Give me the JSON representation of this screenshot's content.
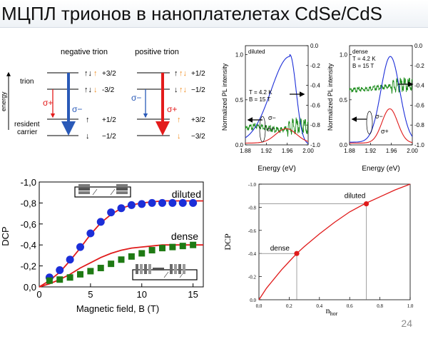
{
  "slide": {
    "title": "МЦПЛ трионов в наноплателетах CdSe/CdS",
    "page_number": "24"
  },
  "energy_diagram": {
    "negative_title": "negative trion",
    "positive_title": "positive trion",
    "axis_label": "energy",
    "trion_label": "trion",
    "resident_label_1": "resident",
    "resident_label_2": "carrier",
    "negative_levels": [
      "+3/2",
      "-3/2",
      "+1/2",
      "−1/2"
    ],
    "positive_levels": [
      "+1/2",
      "−1/2",
      "+3/2",
      "−3/2"
    ],
    "sigma_plus": "σ+",
    "sigma_minus": "σ−",
    "colors": {
      "sigma_plus": "#e31b1b",
      "sigma_minus": "#2a5ab8",
      "hole": "#f08c1e"
    }
  },
  "spectra": [
    {
      "sample": "diluted",
      "conditions": [
        "T = 4.2 K",
        "B = 15 T"
      ],
      "ylabel": "Normalized PL intensity",
      "xlabel": "Energy (eV)",
      "xticks": [
        "1.88",
        "1.92",
        "1.96",
        "2.00"
      ],
      "xlim": [
        1.88,
        2.0
      ],
      "yticks_left": [
        "0.0",
        "0.5",
        "1.0"
      ],
      "ylim_left": [
        0,
        1.1
      ],
      "yticks_right": [
        "-1.0",
        "-0.8",
        "-0.6",
        "-0.4",
        "-0.2",
        "0.0"
      ],
      "ylim_right": [
        -1.0,
        0.0
      ],
      "sigma_plus_label": "σ+",
      "sigma_minus_label": "σ−"
    },
    {
      "sample": "dense",
      "conditions": [
        "T = 4.2 K",
        "B = 15 T"
      ],
      "ylabel": "Normalized PL intensity",
      "xlabel": "Energy (eV)",
      "xticks": [
        "1.88",
        "1.92",
        "1.96",
        "2.00"
      ],
      "xlim": [
        1.88,
        2.0
      ],
      "yticks_left": [
        "0.0",
        "0.5",
        "1.0"
      ],
      "ylim_left": [
        0,
        1.1
      ],
      "yticks_right": [
        "-1.0",
        "-0.8",
        "-0.6",
        "-0.4",
        "-0.2",
        "0.0"
      ],
      "ylim_right": [
        -1.0,
        0.0
      ],
      "sigma_plus_label": "σ+",
      "sigma_minus_label": "σ−"
    }
  ],
  "dcp_field": {
    "xlabel": "Magnetic field, B (T)",
    "ylabel": "DCP",
    "xticks": [
      "0",
      "5",
      "10",
      "15"
    ],
    "yticks": [
      "0,0",
      "-0,2",
      "-0,4",
      "-0,6",
      "-0,8",
      "-1,0"
    ],
    "xlim": [
      0,
      16
    ],
    "ylim": [
      0,
      -1.0
    ],
    "series": [
      {
        "name": "diluted",
        "color": "#1c2ed8",
        "marker": "circle",
        "x": [
          1,
          2,
          3,
          4,
          5,
          6,
          7,
          8,
          9,
          10,
          11,
          12,
          13,
          14,
          15
        ],
        "y": [
          -0.09,
          -0.16,
          -0.26,
          -0.38,
          -0.51,
          -0.62,
          -0.71,
          -0.75,
          -0.78,
          -0.79,
          -0.8,
          -0.8,
          -0.8,
          -0.8,
          -0.8
        ]
      },
      {
        "name": "dense",
        "color": "#1f7a14",
        "marker": "square",
        "x": [
          1,
          2,
          3,
          4,
          5,
          6,
          7,
          8,
          9,
          10,
          11,
          12,
          13,
          14,
          15
        ],
        "y": [
          -0.06,
          -0.07,
          -0.09,
          -0.12,
          -0.15,
          -0.18,
          -0.22,
          -0.26,
          -0.29,
          -0.32,
          -0.35,
          -0.37,
          -0.38,
          -0.39,
          -0.4
        ]
      }
    ],
    "fits": [
      {
        "x": [
          0,
          1,
          2,
          3,
          4,
          5,
          6,
          7,
          8,
          9,
          10,
          11,
          12,
          13,
          14,
          15,
          16
        ],
        "y": [
          0,
          -0.06,
          -0.14,
          -0.25,
          -0.37,
          -0.5,
          -0.61,
          -0.69,
          -0.75,
          -0.78,
          -0.8,
          -0.81,
          -0.82,
          -0.82,
          -0.82,
          -0.82,
          -0.82
        ]
      },
      {
        "x": [
          0,
          1,
          2,
          3,
          4,
          5,
          6,
          7,
          8,
          9,
          10,
          11,
          12,
          13,
          14,
          15,
          16
        ],
        "y": [
          0,
          -0.03,
          -0.07,
          -0.12,
          -0.18,
          -0.23,
          -0.28,
          -0.32,
          -0.35,
          -0.37,
          -0.38,
          -0.39,
          -0.4,
          -0.4,
          -0.4,
          -0.4,
          -0.4
        ]
      }
    ],
    "fit_color": "#e01b1b"
  },
  "dcp_nhor": {
    "xlabel": "n",
    "xlabel_sub": "hor",
    "ylabel": "DCP",
    "xticks": [
      "0.0",
      "0.2",
      "0.4",
      "0.6",
      "0.8",
      "1.0"
    ],
    "yticks": [
      "0.0",
      "-0.2",
      "-0.4",
      "-0.6",
      "-0.8",
      "-1.0"
    ],
    "xlim": [
      0,
      1
    ],
    "ylim": [
      0,
      -1.0
    ],
    "curve": {
      "x": [
        0,
        0.05,
        0.1,
        0.15,
        0.2,
        0.25,
        0.3,
        0.4,
        0.5,
        0.6,
        0.7,
        0.8,
        0.9,
        1.0
      ],
      "y": [
        0,
        -0.1,
        -0.18,
        -0.26,
        -0.33,
        -0.4,
        -0.46,
        -0.57,
        -0.67,
        -0.76,
        -0.83,
        -0.89,
        -0.95,
        -1.0
      ]
    },
    "points": [
      {
        "name": "dense",
        "x": 0.25,
        "y": -0.4
      },
      {
        "name": "diluted",
        "x": 0.71,
        "y": -0.83
      }
    ],
    "color": "#e01b1b"
  }
}
